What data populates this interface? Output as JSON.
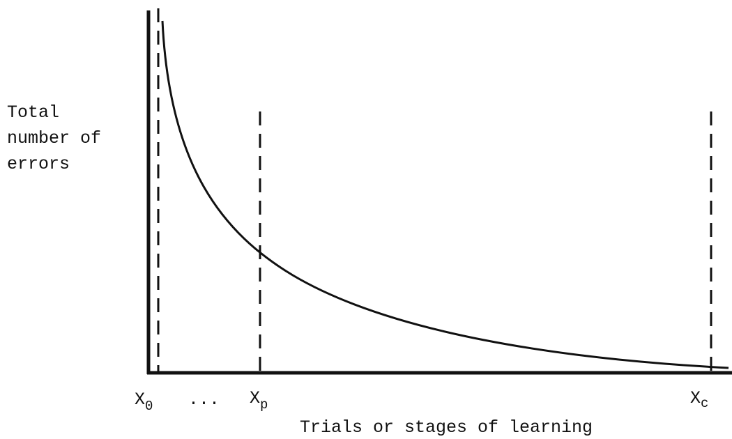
{
  "y_label": [
    "Total",
    "number of",
    "errors"
  ],
  "x_label": "Trials or stages of learning",
  "markers": [
    {
      "label": "X",
      "subscript": "0"
    },
    {
      "label": "..."
    },
    {
      "label": "X",
      "subscript": "p"
    },
    {
      "label": "X",
      "subscript": "c"
    }
  ]
}
